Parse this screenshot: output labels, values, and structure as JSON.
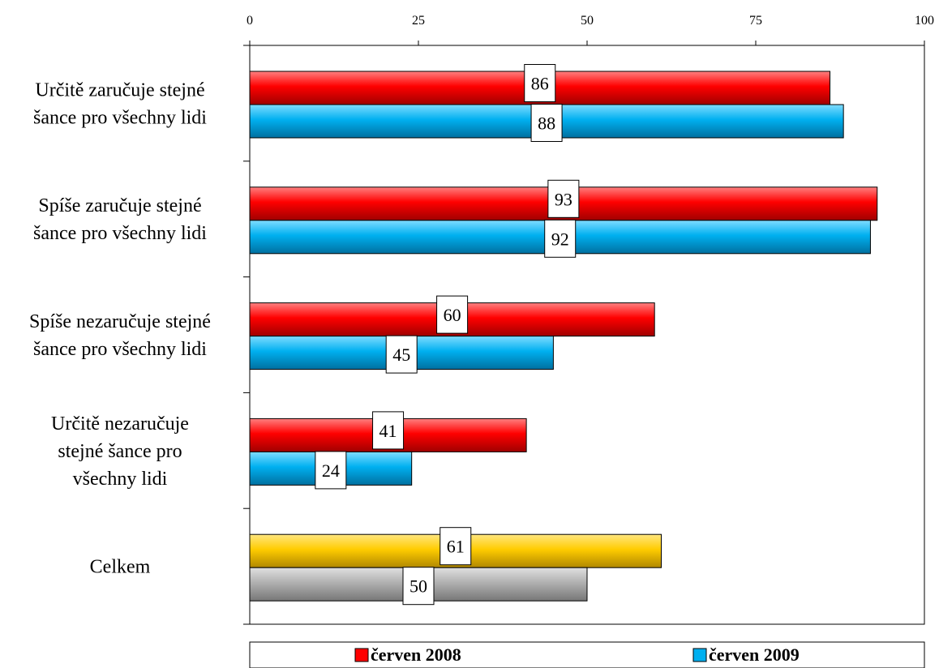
{
  "chart_data": {
    "type": "bar",
    "orientation": "horizontal",
    "xlim": [
      0,
      100
    ],
    "ticks": [
      "0",
      "25",
      "50",
      "75",
      "100"
    ],
    "tick_values": [
      0,
      25,
      50,
      75,
      100
    ],
    "grid": false,
    "legend_position": "bottom",
    "categories": [
      {
        "lines": [
          "Určitě zaručuje stejné",
          "šance pro všechny lidi"
        ]
      },
      {
        "lines": [
          "Spíše zaručuje stejné",
          "šance pro všechny lidi"
        ]
      },
      {
        "lines": [
          "Spíše nezaručuje stejné",
          "šance pro všechny lidi"
        ]
      },
      {
        "lines": [
          "Určitě nezaručuje",
          "stejné šance pro",
          "všechny lidi"
        ]
      },
      {
        "lines": [
          "Celkem"
        ]
      }
    ],
    "series": [
      {
        "name": "červen 2008",
        "color": "#ff0000",
        "values": [
          86,
          93,
          60,
          41,
          61
        ],
        "labels": [
          "86",
          "93",
          "60",
          "41",
          "61"
        ]
      },
      {
        "name": "červen 2009",
        "color": "#00b0f0",
        "values": [
          88,
          92,
          45,
          24,
          50
        ],
        "labels": [
          "88",
          "92",
          "45",
          "24",
          "50"
        ]
      }
    ],
    "celkem_colors": [
      "#ffcc00",
      "#b0b0b0"
    ]
  }
}
